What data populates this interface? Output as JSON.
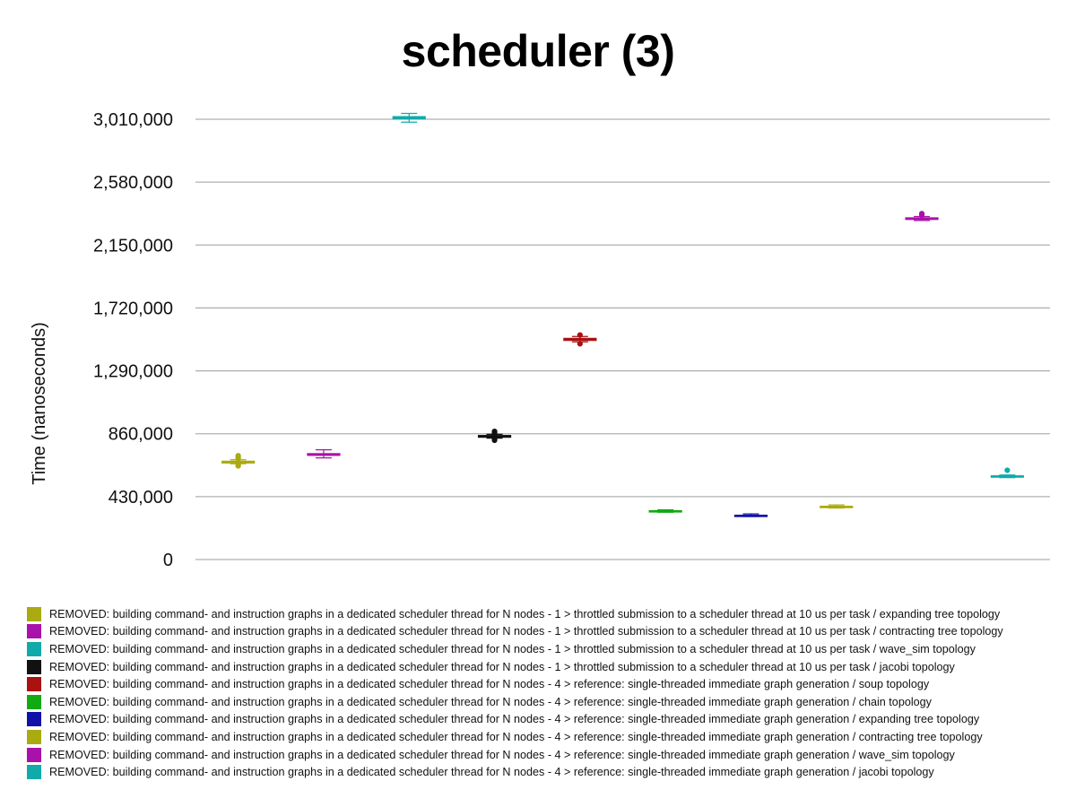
{
  "chart_data": {
    "type": "boxplot",
    "title": "scheduler (3)",
    "ylabel": "Time (nanoseconds)",
    "xlabel": "",
    "ylim": [
      0,
      3010000
    ],
    "yticks": [
      0,
      430000,
      860000,
      1290000,
      1720000,
      2150000,
      2580000,
      3010000
    ],
    "ytick_labels": [
      "0",
      "430,000",
      "860,000",
      "1,290,000",
      "1,720,000",
      "2,150,000",
      "2,580,000",
      "3,010,000"
    ],
    "grid": true,
    "legend_position": "bottom",
    "series": [
      {
        "name": "REMOVED: building command- and instruction graphs in a dedicated scheduler thread for N nodes - 1 > throttled submission to a scheduler thread at 10 us per task / expanding tree topology",
        "color": "#AAAA11",
        "median": 665000,
        "q1": 660000,
        "q3": 672000,
        "whisker_low": 655000,
        "whisker_high": 682000,
        "outliers": [
          640000,
          648000,
          690000,
          700000,
          710000
        ]
      },
      {
        "name": "REMOVED: building command- and instruction graphs in a dedicated scheduler thread for N nodes - 1 > throttled submission to a scheduler thread at 10 us per task / contracting tree topology",
        "color": "#AA11AA",
        "median": 718000,
        "q1": 712000,
        "q3": 724000,
        "whisker_low": 695000,
        "whisker_high": 750000,
        "outliers": []
      },
      {
        "name": "REMOVED: building command- and instruction graphs in a dedicated scheduler thread for N nodes - 1 > throttled submission to a scheduler thread at 10 us per task / wave_sim topology",
        "color": "#11AAAA",
        "median": 3020000,
        "q1": 3013000,
        "q3": 3028000,
        "whisker_low": 2990000,
        "whisker_high": 3050000,
        "outliers": []
      },
      {
        "name": "REMOVED: building command- and instruction graphs in a dedicated scheduler thread for N nodes - 1 > throttled submission to a scheduler thread at 10 us per task / jacobi topology",
        "color": "#111111",
        "median": 842000,
        "q1": 836000,
        "q3": 848000,
        "whisker_low": 830000,
        "whisker_high": 856000,
        "outliers": [
          815000,
          822000,
          828000,
          858000,
          864000,
          870000,
          876000
        ]
      },
      {
        "name": "REMOVED: building command- and instruction graphs in a dedicated scheduler thread for N nodes - 4 > reference: single-threaded immediate graph generation / soup topology",
        "color": "#AA1111",
        "median": 1505000,
        "q1": 1498000,
        "q3": 1512000,
        "whisker_low": 1488000,
        "whisker_high": 1525000,
        "outliers": [
          1475000,
          1535000
        ]
      },
      {
        "name": "REMOVED: building command- and instruction graphs in a dedicated scheduler thread for N nodes - 4 > reference: single-threaded immediate graph generation / chain topology",
        "color": "#11AA11",
        "median": 330000,
        "q1": 327000,
        "q3": 334000,
        "whisker_low": 323000,
        "whisker_high": 340000,
        "outliers": []
      },
      {
        "name": "REMOVED: building command- and instruction graphs in a dedicated scheduler thread for N nodes - 4 > reference: single-threaded immediate graph generation / expanding tree topology",
        "color": "#1111AA",
        "median": 300000,
        "q1": 297000,
        "q3": 303000,
        "whisker_low": 294000,
        "whisker_high": 312000,
        "outliers": []
      },
      {
        "name": "REMOVED: building command- and instruction graphs in a dedicated scheduler thread for N nodes - 4 > reference: single-threaded immediate graph generation / contracting tree topology",
        "color": "#AAAA11",
        "median": 360000,
        "q1": 356000,
        "q3": 364000,
        "whisker_low": 352000,
        "whisker_high": 373000,
        "outliers": []
      },
      {
        "name": "REMOVED: building command- and instruction graphs in a dedicated scheduler thread for N nodes - 4 > reference: single-threaded immediate graph generation / wave_sim topology",
        "color": "#AA11AA",
        "median": 2330000,
        "q1": 2325000,
        "q3": 2336000,
        "whisker_low": 2318000,
        "whisker_high": 2345000,
        "outliers": [
          2355000,
          2365000
        ]
      },
      {
        "name": "REMOVED: building command- and instruction graphs in a dedicated scheduler thread for N nodes - 4 > reference: single-threaded immediate graph generation / jacobi topology",
        "color": "#11AAAA",
        "median": 568000,
        "q1": 564000,
        "q3": 572000,
        "whisker_low": 560000,
        "whisker_high": 578000,
        "outliers": [
          610000
        ]
      }
    ]
  }
}
